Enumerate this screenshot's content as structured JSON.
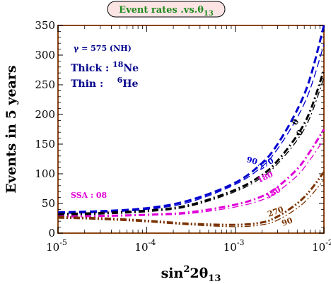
{
  "chart_data": {
    "type": "line",
    "title": "Event rates .vs.θ13",
    "title_main": "Event rates .vs.θ",
    "title_sub": "13",
    "xlabel_main": "sin",
    "xlabel_sup": "2",
    "xlabel_rest": "2θ",
    "xlabel_sub": "13",
    "ylabel": "Events in 5 years",
    "x_scale": "log",
    "xlim": [
      1e-05,
      0.01
    ],
    "ylim": [
      0,
      350
    ],
    "grid": false,
    "x_ticks": [
      {
        "base": "10",
        "exp": "-5",
        "value": 1e-05
      },
      {
        "base": "10",
        "exp": "-4",
        "value": 0.0001
      },
      {
        "base": "10",
        "exp": "-3",
        "value": 0.001
      },
      {
        "base": "10",
        "exp": "-2",
        "value": 0.01
      }
    ],
    "y_ticks": [
      "0",
      "50",
      "100",
      "150",
      "200",
      "250",
      "300",
      "350"
    ],
    "colors": {
      "blue": "#0000d0",
      "black": "#000000",
      "magenta": "#e000d8",
      "brown": "#7a3200",
      "frame": "#8b4513",
      "title_box": "#fde4e4",
      "title_text": "#1d8a1d",
      "annotation": "#00008b"
    },
    "annotations": {
      "gamma": "γ = 575  (NH)",
      "thick_prefix": "Thick : ",
      "thick_sup": "18",
      "thick_isotope": "Ne",
      "thin_prefix": "Thin :    ",
      "thin_sup": "6",
      "thin_isotope": "He",
      "ssa": "SSA : 08"
    },
    "curve_labels": [
      {
        "text": "90",
        "color": "#0000d0"
      },
      {
        "text": "270",
        "color": "#0000d0"
      },
      {
        "text": "0",
        "color": "#000000"
      },
      {
        "text": "0",
        "color": "#000000"
      },
      {
        "text": "180",
        "color": "#e000d8"
      },
      {
        "text": "180",
        "color": "#e000d8"
      },
      {
        "text": "270",
        "color": "#7a3200"
      },
      {
        "text": "90",
        "color": "#7a3200"
      }
    ],
    "x": [
      1e-05,
      3e-05,
      0.0001,
      0.0003,
      0.001,
      0.002,
      0.003,
      0.005,
      0.007,
      0.01
    ],
    "series": [
      {
        "color": "#0000d0",
        "style": "dashed-thick",
        "values": [
          35,
          37,
          42,
          55,
          85,
          118,
          150,
          208,
          262,
          350
        ]
      },
      {
        "color": "#0000d0",
        "style": "dashed-thin",
        "values": [
          33,
          35,
          40,
          52,
          82,
          112,
          142,
          195,
          243,
          318
        ]
      },
      {
        "color": "#000000",
        "style": "dashdot-thick",
        "values": [
          32,
          34,
          38,
          47,
          73,
          98,
          122,
          165,
          206,
          275
        ]
      },
      {
        "color": "#000000",
        "style": "dashdot-thin",
        "values": [
          30,
          32,
          36,
          45,
          70,
          94,
          117,
          157,
          196,
          262
        ]
      },
      {
        "color": "#e000d8",
        "style": "dashdot-thick",
        "values": [
          28,
          29,
          31,
          35,
          48,
          62,
          78,
          108,
          138,
          175
        ]
      },
      {
        "color": "#e000d8",
        "style": "dashdot-thin",
        "values": [
          27,
          28,
          30,
          33,
          44,
          56,
          70,
          97,
          124,
          158
        ]
      },
      {
        "color": "#7a3200",
        "style": "dashdotdot-thick",
        "values": [
          27,
          25,
          21,
          16,
          14,
          18,
          28,
          50,
          72,
          103
        ]
      },
      {
        "color": "#7a3200",
        "style": "dashdotdot-thin",
        "values": [
          25,
          23,
          19,
          14,
          11,
          14,
          22,
          42,
          62,
          90
        ]
      }
    ]
  }
}
